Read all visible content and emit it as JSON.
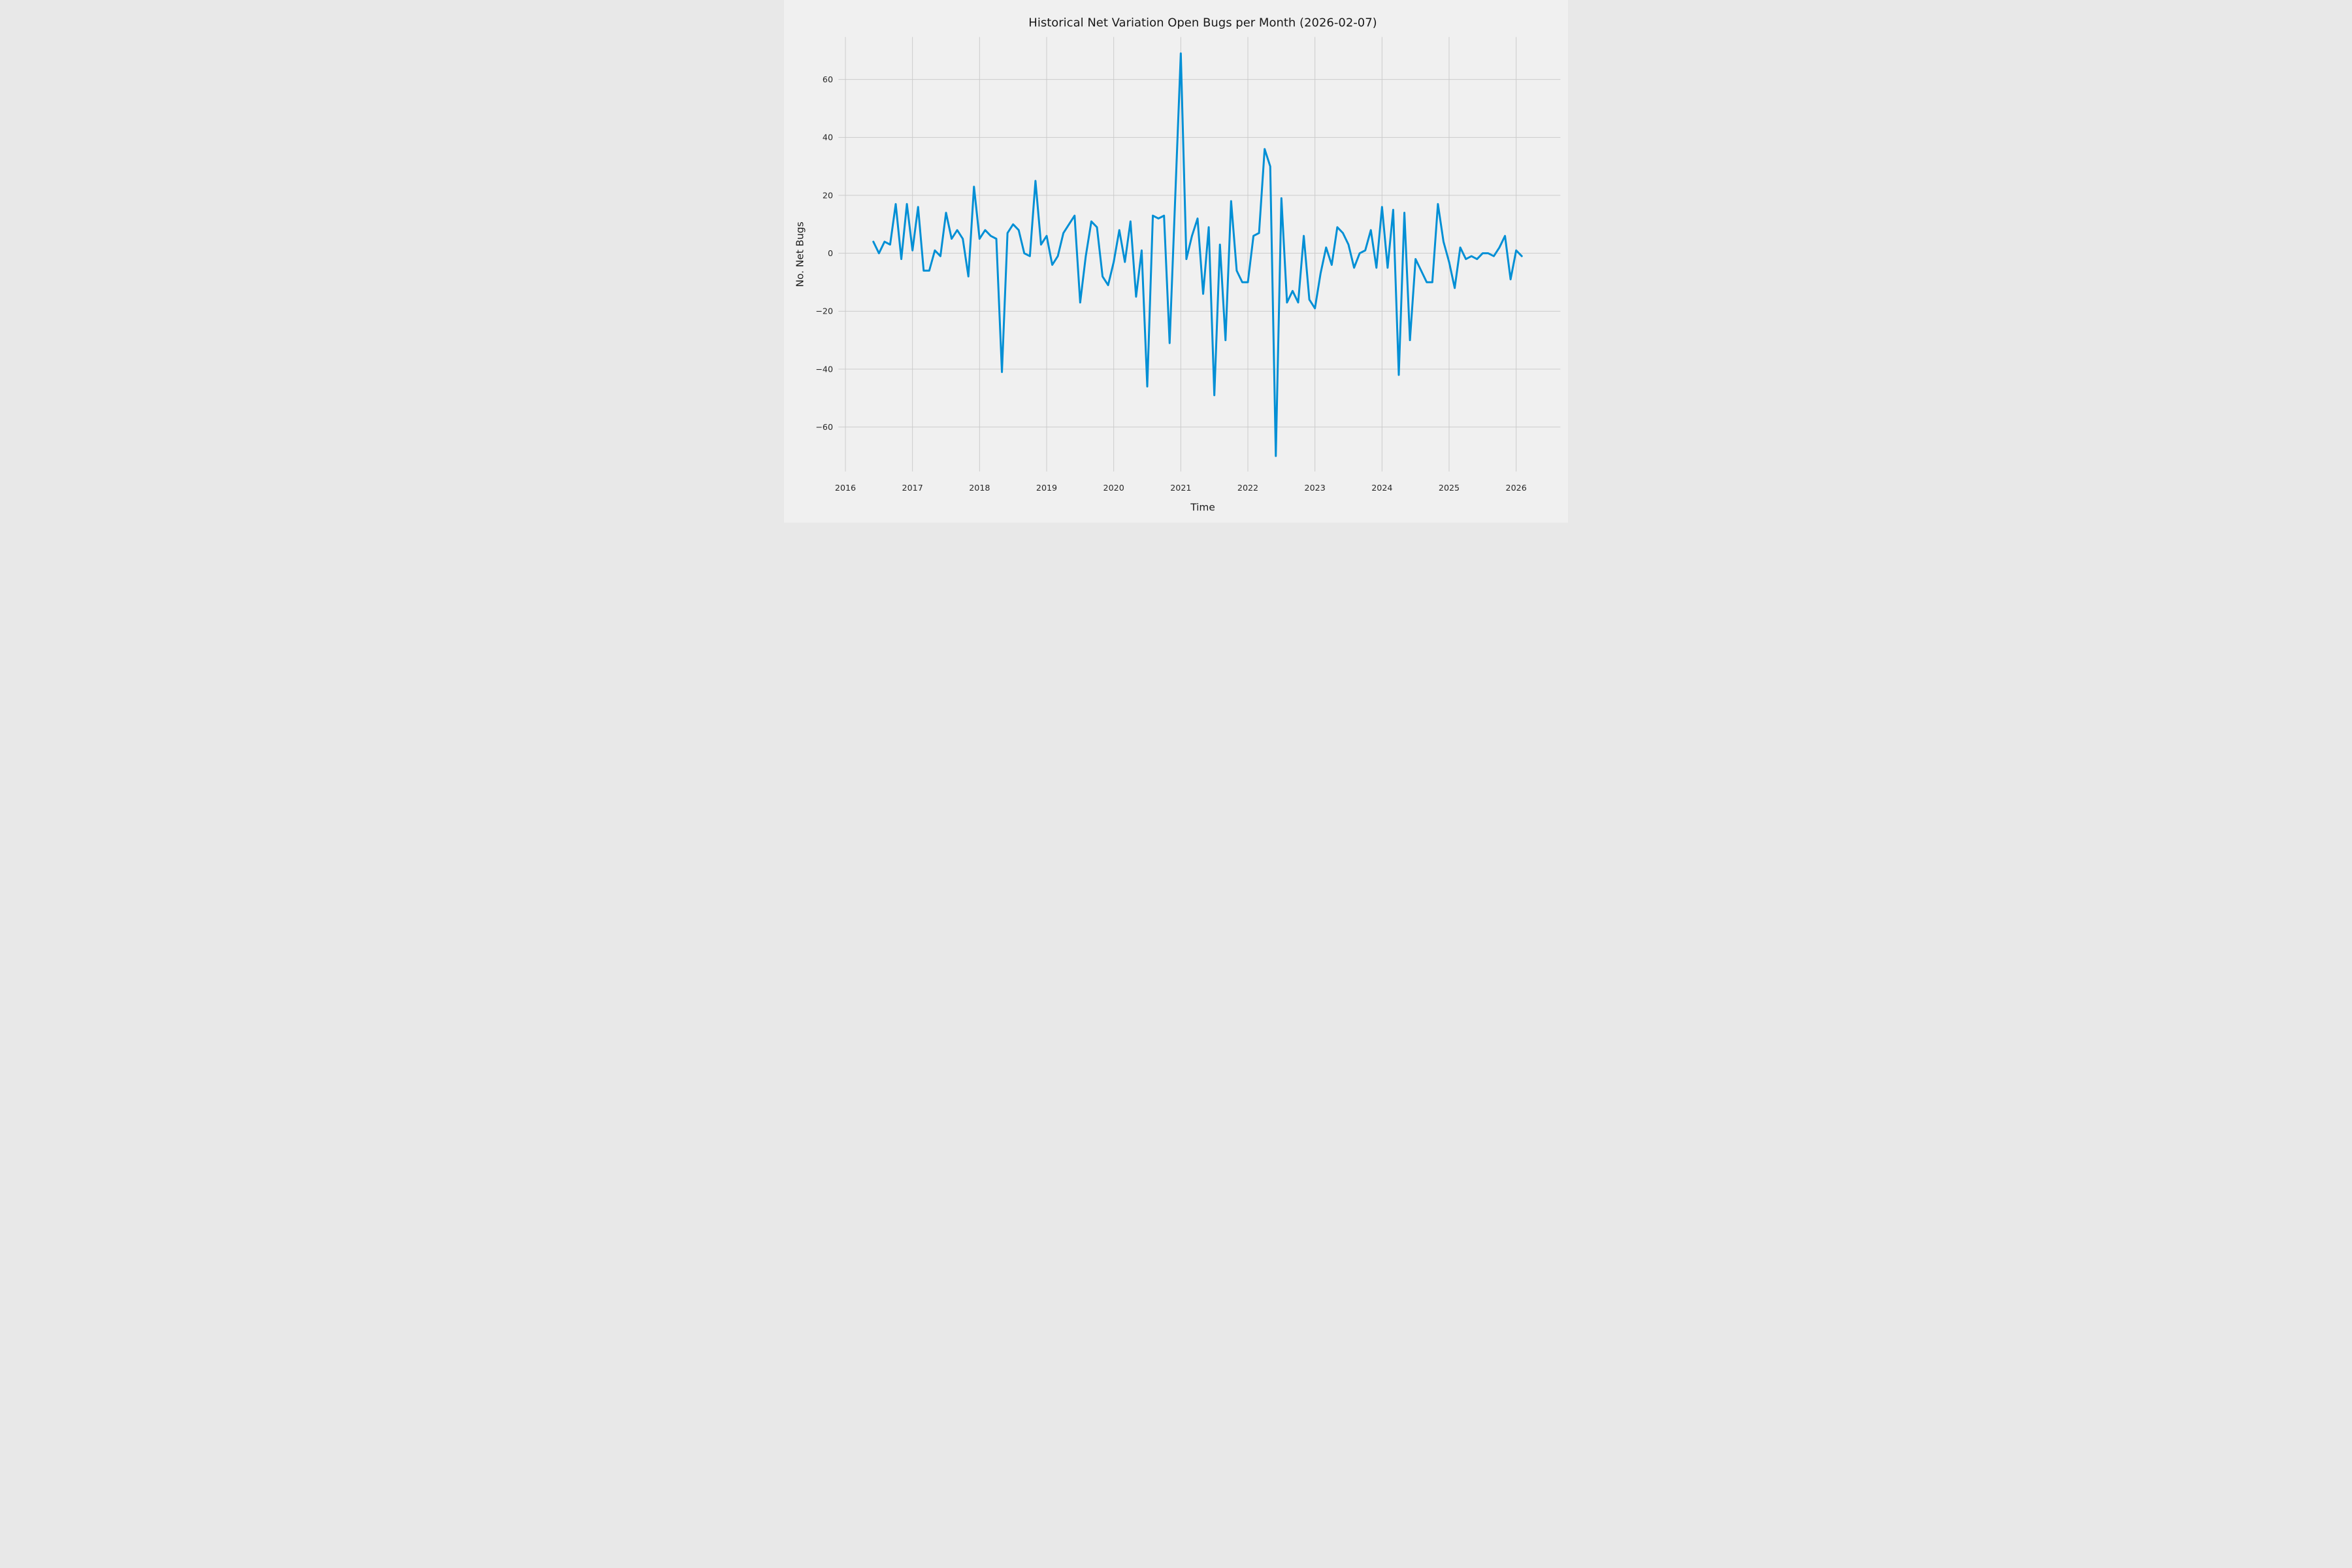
{
  "chart_data": {
    "type": "line",
    "title": "Historical Net Variation Open Bugs per Month (2026-02-07)",
    "xlabel": "Time",
    "ylabel": "No. Net Bugs",
    "x_start": "2016-06",
    "x_freq": "monthly",
    "values": [
      4,
      0,
      4,
      3,
      17,
      -2,
      17,
      1,
      16,
      -6,
      -6,
      1,
      -1,
      14,
      5,
      8,
      5,
      -8,
      23,
      5,
      8,
      6,
      5,
      -41,
      7,
      10,
      8,
      0,
      -1,
      25,
      3,
      6,
      -4,
      -1,
      7,
      10,
      13,
      -17,
      -1,
      11,
      9,
      -8,
      -11,
      -3,
      8,
      -3,
      11,
      -15,
      1,
      -46,
      13,
      12,
      13,
      -31,
      19,
      69,
      -2,
      6,
      12,
      -14,
      9,
      -49,
      3,
      -30,
      18,
      -6,
      -10,
      -10,
      6,
      7,
      36,
      30,
      -70,
      19,
      -17,
      -13,
      -17,
      6,
      -16,
      -19,
      -7,
      2,
      -4,
      9,
      7,
      3,
      -5,
      0,
      1,
      8,
      -5,
      16,
      -5,
      15,
      -42,
      14,
      -30,
      -2,
      -6,
      -10,
      -10,
      17,
      4,
      -3,
      -12,
      2,
      -2,
      -1,
      -2,
      0,
      0,
      -1,
      2,
      6,
      -9,
      1,
      -1
    ],
    "xticks": [
      2016,
      2017,
      2018,
      2019,
      2020,
      2021,
      2022,
      2023,
      2024,
      2025,
      2026
    ],
    "yticks": [
      -60,
      -40,
      -20,
      0,
      20,
      40,
      60
    ],
    "ylim": [
      -75,
      75
    ],
    "grid": true,
    "legend": false,
    "style": {
      "background_color": "#f0f0f0",
      "grid_color": "#cbcbcb",
      "line_color": "#008fd5",
      "text_color": "#262626"
    }
  }
}
